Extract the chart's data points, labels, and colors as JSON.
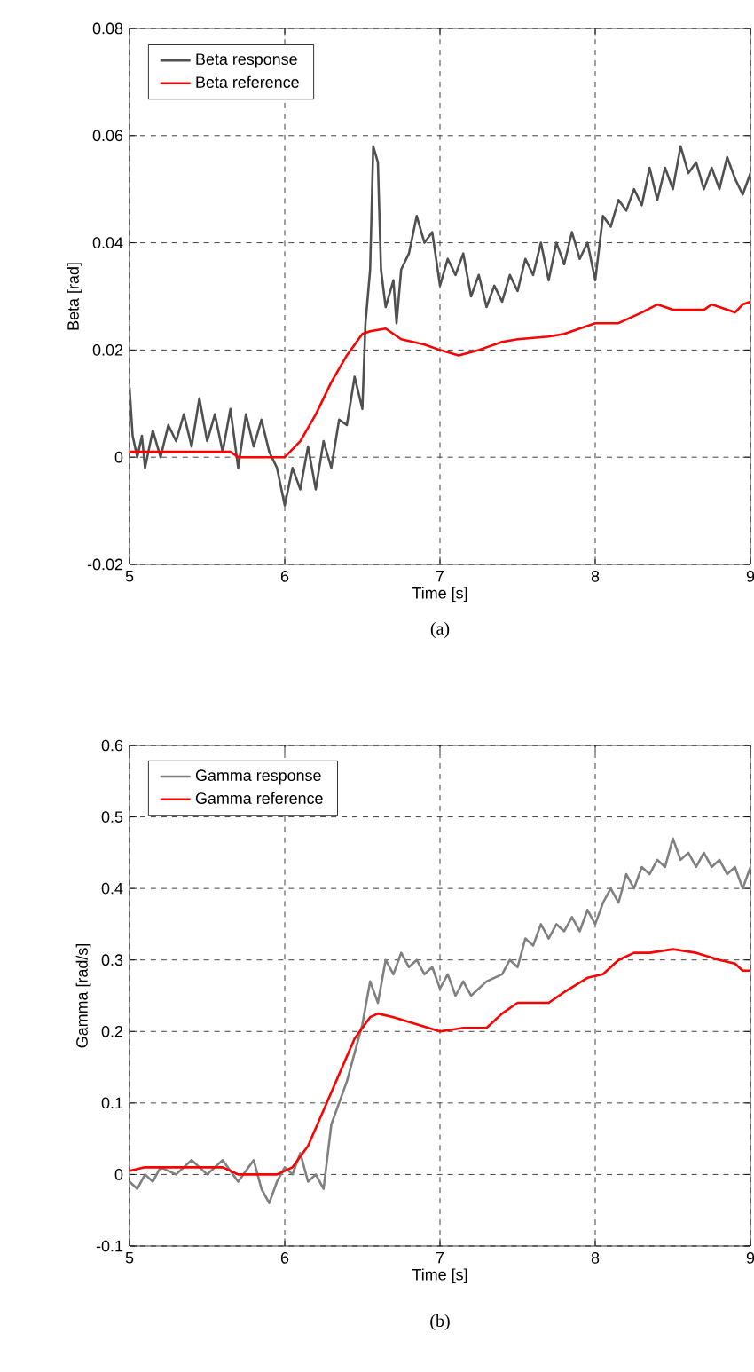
{
  "chart_data": [
    {
      "type": "line",
      "xlabel": "Time [s]",
      "ylabel": "Beta [rad]",
      "xlim": [
        5,
        9
      ],
      "ylim": [
        -0.02,
        0.08
      ],
      "xticks": [
        5,
        6,
        7,
        8,
        9
      ],
      "yticks": [
        -0.02,
        0,
        0.02,
        0.04,
        0.06,
        0.08
      ],
      "grid": true,
      "legend": "top left",
      "line_style": "solid",
      "marker": "none",
      "annotations": [
        "(a)"
      ],
      "series": [
        {
          "name": "Beta response",
          "color": "#505050",
          "x": [
            5.0,
            5.02,
            5.05,
            5.08,
            5.1,
            5.15,
            5.2,
            5.25,
            5.3,
            5.35,
            5.4,
            5.45,
            5.5,
            5.55,
            5.6,
            5.65,
            5.7,
            5.75,
            5.8,
            5.85,
            5.9,
            5.95,
            6.0,
            6.05,
            6.1,
            6.15,
            6.2,
            6.25,
            6.3,
            6.35,
            6.4,
            6.45,
            6.5,
            6.52,
            6.55,
            6.57,
            6.6,
            6.62,
            6.65,
            6.7,
            6.72,
            6.75,
            6.8,
            6.85,
            6.9,
            6.95,
            7.0,
            7.05,
            7.1,
            7.15,
            7.2,
            7.25,
            7.3,
            7.35,
            7.4,
            7.45,
            7.5,
            7.55,
            7.6,
            7.65,
            7.7,
            7.75,
            7.8,
            7.85,
            7.9,
            7.95,
            8.0,
            8.05,
            8.1,
            8.15,
            8.2,
            8.25,
            8.3,
            8.35,
            8.4,
            8.45,
            8.5,
            8.55,
            8.6,
            8.65,
            8.7,
            8.75,
            8.8,
            8.85,
            8.9,
            8.95,
            9.0
          ],
          "values": [
            0.013,
            0.004,
            0.0,
            0.004,
            -0.002,
            0.005,
            0.0,
            0.006,
            0.003,
            0.008,
            0.002,
            0.011,
            0.003,
            0.008,
            0.001,
            0.009,
            -0.002,
            0.008,
            0.002,
            0.007,
            0.001,
            -0.002,
            -0.009,
            -0.002,
            -0.006,
            0.002,
            -0.006,
            0.003,
            -0.002,
            0.007,
            0.006,
            0.015,
            0.009,
            0.025,
            0.035,
            0.058,
            0.055,
            0.035,
            0.028,
            0.033,
            0.025,
            0.035,
            0.038,
            0.045,
            0.04,
            0.042,
            0.032,
            0.037,
            0.034,
            0.038,
            0.03,
            0.034,
            0.028,
            0.032,
            0.029,
            0.034,
            0.031,
            0.037,
            0.034,
            0.04,
            0.033,
            0.04,
            0.036,
            0.042,
            0.037,
            0.04,
            0.033,
            0.045,
            0.043,
            0.048,
            0.046,
            0.05,
            0.047,
            0.054,
            0.048,
            0.054,
            0.05,
            0.058,
            0.053,
            0.055,
            0.05,
            0.054,
            0.05,
            0.056,
            0.052,
            0.049,
            0.053
          ]
        },
        {
          "name": "Beta reference",
          "color": "#ff0000",
          "x": [
            5.0,
            5.65,
            5.7,
            6.0,
            6.1,
            6.2,
            6.3,
            6.4,
            6.5,
            6.55,
            6.65,
            6.75,
            6.9,
            7.0,
            7.12,
            7.25,
            7.4,
            7.5,
            7.7,
            7.8,
            8.0,
            8.15,
            8.3,
            8.4,
            8.5,
            8.7,
            8.75,
            8.9,
            8.95,
            9.0
          ],
          "values": [
            0.001,
            0.001,
            0.0,
            0.0,
            0.003,
            0.008,
            0.014,
            0.019,
            0.023,
            0.0235,
            0.024,
            0.022,
            0.021,
            0.02,
            0.019,
            0.02,
            0.0215,
            0.022,
            0.0225,
            0.023,
            0.025,
            0.025,
            0.027,
            0.0285,
            0.0275,
            0.0275,
            0.0285,
            0.027,
            0.0285,
            0.029
          ]
        }
      ]
    },
    {
      "type": "line",
      "xlabel": "Time [s]",
      "ylabel": "Gamma [rad/s]",
      "xlim": [
        5,
        9
      ],
      "ylim": [
        -0.1,
        0.6
      ],
      "xticks": [
        5,
        6,
        7,
        8,
        9
      ],
      "yticks": [
        -0.1,
        0,
        0.1,
        0.2,
        0.3,
        0.4,
        0.5,
        0.6
      ],
      "grid": true,
      "legend": "top left",
      "line_style": "solid",
      "marker": "none",
      "annotations": [
        "(b)"
      ],
      "series": [
        {
          "name": "Gamma response",
          "color": "#808080",
          "x": [
            5.0,
            5.05,
            5.1,
            5.15,
            5.2,
            5.3,
            5.4,
            5.5,
            5.6,
            5.7,
            5.8,
            5.85,
            5.9,
            5.95,
            6.0,
            6.05,
            6.1,
            6.15,
            6.2,
            6.25,
            6.3,
            6.35,
            6.4,
            6.45,
            6.5,
            6.55,
            6.6,
            6.65,
            6.7,
            6.75,
            6.8,
            6.85,
            6.9,
            6.95,
            7.0,
            7.05,
            7.1,
            7.15,
            7.2,
            7.3,
            7.4,
            7.45,
            7.5,
            7.55,
            7.6,
            7.65,
            7.7,
            7.75,
            7.8,
            7.85,
            7.9,
            7.95,
            8.0,
            8.05,
            8.1,
            8.15,
            8.2,
            8.25,
            8.3,
            8.35,
            8.4,
            8.45,
            8.5,
            8.55,
            8.6,
            8.65,
            8.7,
            8.75,
            8.8,
            8.85,
            8.9,
            8.95,
            9.0
          ],
          "values": [
            -0.01,
            -0.02,
            0.0,
            -0.01,
            0.01,
            0.0,
            0.02,
            0.0,
            0.02,
            -0.01,
            0.02,
            -0.02,
            -0.04,
            -0.01,
            0.01,
            0.0,
            0.03,
            -0.01,
            0.0,
            -0.02,
            0.07,
            0.1,
            0.13,
            0.17,
            0.21,
            0.27,
            0.24,
            0.3,
            0.28,
            0.31,
            0.29,
            0.3,
            0.28,
            0.29,
            0.26,
            0.28,
            0.25,
            0.27,
            0.25,
            0.27,
            0.28,
            0.3,
            0.29,
            0.33,
            0.32,
            0.35,
            0.33,
            0.35,
            0.34,
            0.36,
            0.34,
            0.37,
            0.35,
            0.38,
            0.4,
            0.38,
            0.42,
            0.4,
            0.43,
            0.42,
            0.44,
            0.43,
            0.47,
            0.44,
            0.45,
            0.43,
            0.45,
            0.43,
            0.44,
            0.42,
            0.43,
            0.4,
            0.43
          ]
        },
        {
          "name": "Gamma reference",
          "color": "#ff0000",
          "x": [
            5.0,
            5.1,
            5.6,
            5.7,
            5.95,
            6.05,
            6.15,
            6.25,
            6.35,
            6.45,
            6.55,
            6.6,
            6.7,
            6.85,
            7.0,
            7.15,
            7.3,
            7.4,
            7.5,
            7.7,
            7.8,
            7.95,
            8.05,
            8.15,
            8.25,
            8.35,
            8.5,
            8.65,
            8.8,
            8.9,
            8.95,
            9.0
          ],
          "values": [
            0.005,
            0.01,
            0.01,
            0.0,
            0.0,
            0.01,
            0.04,
            0.09,
            0.14,
            0.19,
            0.22,
            0.225,
            0.22,
            0.21,
            0.2,
            0.205,
            0.205,
            0.225,
            0.24,
            0.24,
            0.255,
            0.275,
            0.28,
            0.3,
            0.31,
            0.31,
            0.315,
            0.31,
            0.3,
            0.295,
            0.285,
            0.285
          ]
        }
      ]
    }
  ]
}
